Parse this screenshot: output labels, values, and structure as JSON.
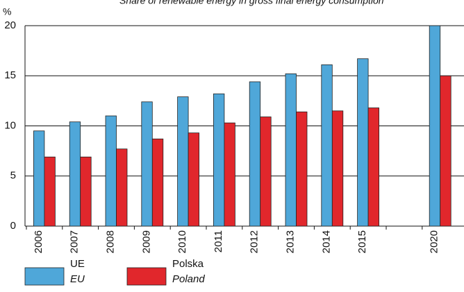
{
  "chart_data": {
    "type": "bar",
    "title": "Share of renewable energy in gross final energy consumption",
    "y_label": "%",
    "categories": [
      "2006",
      "2007",
      "2008",
      "2009",
      "2010",
      "2011",
      "2012",
      "2013",
      "2014",
      "2015",
      null,
      "2020"
    ],
    "series": [
      {
        "name": "UE",
        "name_en": "EU",
        "color": "#4fa7d9",
        "values": [
          9.5,
          10.4,
          11.0,
          12.4,
          12.9,
          13.2,
          14.4,
          15.2,
          16.1,
          16.7,
          null,
          20
        ]
      },
      {
        "name": "Polska",
        "name_en": "Poland",
        "color": "#e1272c",
        "values": [
          6.9,
          6.9,
          7.7,
          8.7,
          9.3,
          10.3,
          10.9,
          11.4,
          11.5,
          11.8,
          null,
          15
        ]
      }
    ],
    "ylim": [
      0,
      20
    ],
    "yticks": [
      0,
      5,
      10,
      15,
      20
    ],
    "grid": true
  }
}
